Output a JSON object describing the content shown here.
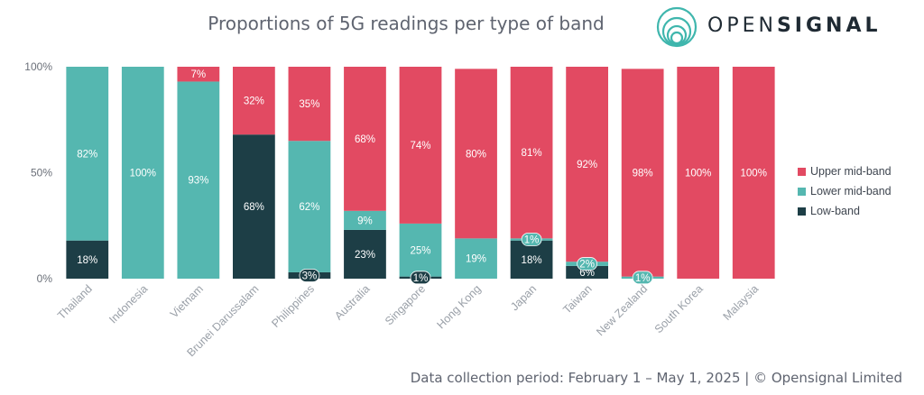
{
  "brand": {
    "name_light": "OPEN",
    "name_bold": "SIGNAL",
    "colors": {
      "ring": "#3fb6ad",
      "text": "#1f2a33"
    }
  },
  "footer": "Data collection period: February 1 – May 1, 2025 | © Opensignal Limited",
  "chart_data": {
    "type": "bar",
    "stacked": true,
    "title": "Proportions of 5G readings per type of band",
    "xlabel": "",
    "ylabel": "",
    "ylim": [
      0,
      100
    ],
    "yticks": [
      "0%",
      "50%",
      "100%"
    ],
    "legend_position": "right",
    "grid": false,
    "categories": [
      "Thailand",
      "Indonesia",
      "Vietnam",
      "Brunei Darussalam",
      "Philippines",
      "Australia",
      "Singapore",
      "Hong Kong",
      "Japan",
      "Taiwan",
      "New Zealand",
      "South Korea",
      "Malaysia"
    ],
    "series": [
      {
        "name": "Low-band",
        "color": "#1d3e46",
        "values": [
          18,
          0,
          0,
          68,
          3,
          23,
          1,
          0,
          18,
          6,
          0,
          0,
          0
        ],
        "labels": [
          "18%",
          "",
          "",
          "68%",
          "3%",
          "23%",
          "1%",
          "",
          "18%",
          "6%",
          "",
          "",
          ""
        ]
      },
      {
        "name": "Lower mid-band",
        "color": "#55b7b0",
        "values": [
          82,
          100,
          93,
          0,
          62,
          9,
          25,
          19,
          1,
          2,
          1,
          0,
          0
        ],
        "labels": [
          "82%",
          "100%",
          "93%",
          "",
          "62%",
          "9%",
          "25%",
          "19%",
          "1%",
          "2%",
          "1%",
          "",
          ""
        ]
      },
      {
        "name": "Upper mid-band",
        "color": "#e24a62",
        "values": [
          0,
          0,
          7,
          32,
          35,
          68,
          74,
          80,
          81,
          92,
          98,
          100,
          100
        ],
        "labels": [
          "",
          "",
          "7%",
          "32%",
          "35%",
          "68%",
          "74%",
          "80%",
          "81%",
          "92%",
          "98%",
          "100%",
          "100%"
        ]
      }
    ],
    "legend_order": [
      "Upper mid-band",
      "Lower mid-band",
      "Low-band"
    ]
  }
}
